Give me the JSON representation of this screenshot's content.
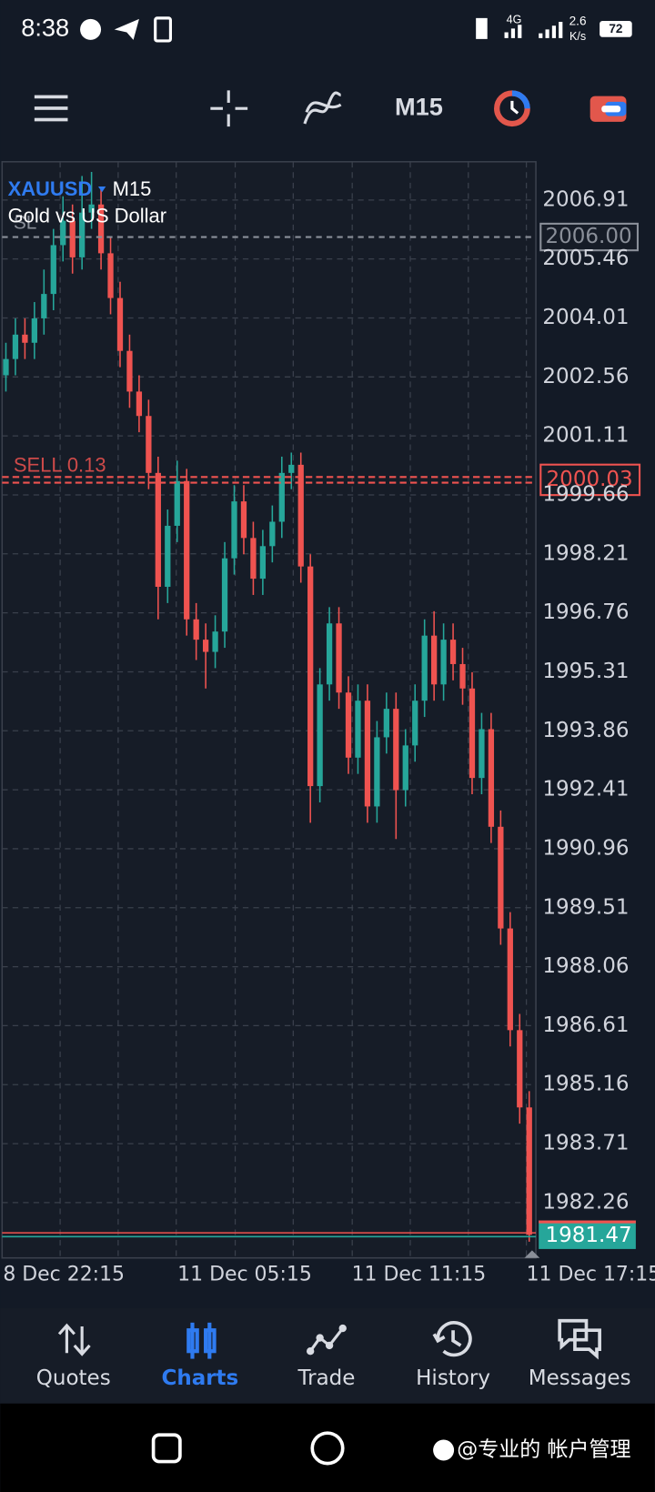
{
  "status_bar": {
    "time": "8:38",
    "network": "4G",
    "speed": "2.6",
    "speed_unit": "K/s",
    "battery": "72"
  },
  "toolbar": {
    "timeframe": "M15"
  },
  "chart_data": {
    "type": "candlestick",
    "symbol": "XAUUSD",
    "timeframe": "M15",
    "subtitle": "Gold vs US Dollar",
    "up_color": "#26a69a",
    "down_color": "#ef5350",
    "grid": true,
    "ylim": [
      1980.9,
      2007.85
    ],
    "yticks": [
      2006.91,
      2005.46,
      2004.01,
      2002.56,
      2001.11,
      1999.66,
      1998.21,
      1996.76,
      1995.31,
      1993.86,
      1992.41,
      1990.96,
      1989.51,
      1988.06,
      1986.61,
      1985.16,
      1983.71,
      1982.26
    ],
    "x_labels": [
      "8 Dec 22:15",
      "11 Dec 05:15",
      "11 Dec 11:15",
      "11 Dec 17:15"
    ],
    "candles": {
      "open": [
        2002.6,
        2003.0,
        2003.6,
        2003.4,
        2004.0,
        2004.6,
        2005.8,
        2006.4,
        2005.5,
        2006.6,
        2006.8,
        2005.6,
        2004.5,
        2003.2,
        2002.2,
        2001.6,
        2000.2,
        1997.4,
        1998.9,
        2000.0,
        1996.6,
        1996.1,
        1995.8,
        1996.3,
        1998.1,
        1999.5,
        1998.6,
        1997.6,
        1998.4,
        1999.0,
        2000.2,
        2000.4,
        1997.9,
        1992.5,
        1995.0,
        1996.5,
        1994.8,
        1993.2,
        1994.6,
        1992.0,
        1993.7,
        1994.4,
        1992.4,
        1993.5,
        1994.6,
        1996.2,
        1995.0,
        1996.1,
        1995.5,
        1994.9,
        1992.7,
        1993.9,
        1991.5,
        1989.0,
        1986.5,
        1984.6
      ],
      "high": [
        2003.4,
        2004.0,
        2004.0,
        2004.4,
        2005.2,
        2006.2,
        2007.0,
        2006.8,
        2007.5,
        2007.6,
        2007.2,
        2006.0,
        2004.9,
        2003.6,
        2002.6,
        2002.0,
        2000.6,
        1999.3,
        2000.5,
        2000.3,
        1997.0,
        1996.5,
        1996.7,
        1998.5,
        1999.9,
        1999.9,
        1999.0,
        1998.8,
        1999.4,
        2000.6,
        2000.7,
        2000.7,
        1998.2,
        1995.4,
        1996.9,
        1996.9,
        1995.2,
        1995.0,
        1995.0,
        1994.1,
        1994.8,
        1994.8,
        1993.9,
        1995.0,
        1996.6,
        1996.8,
        1996.5,
        1996.5,
        1995.9,
        1995.3,
        1994.3,
        1994.3,
        1991.9,
        1989.4,
        1986.9,
        1985.0
      ],
      "low": [
        2002.2,
        2002.6,
        2003.0,
        2003.0,
        2003.6,
        2004.2,
        2005.4,
        2005.1,
        2005.2,
        2006.2,
        2005.2,
        2004.1,
        2002.8,
        2001.8,
        2001.2,
        1999.8,
        1996.6,
        1997.0,
        1998.5,
        1996.2,
        1995.6,
        1994.9,
        1995.4,
        1995.9,
        1997.7,
        1998.2,
        1997.2,
        1997.2,
        1998.0,
        1998.6,
        1999.8,
        1997.5,
        1991.6,
        1992.1,
        1994.6,
        1994.4,
        1992.8,
        1992.8,
        1991.6,
        1991.6,
        1993.3,
        1991.2,
        1992.0,
        1993.1,
        1994.2,
        1994.6,
        1994.6,
        1995.1,
        1994.5,
        1992.3,
        1992.3,
        1991.1,
        1988.6,
        1986.1,
        1984.2,
        1981.3
      ],
      "close": [
        2003.0,
        2003.6,
        2003.4,
        2004.0,
        2004.6,
        2005.8,
        2006.4,
        2005.5,
        2006.6,
        2006.8,
        2005.6,
        2004.5,
        2003.2,
        2002.2,
        2001.6,
        2000.2,
        1997.4,
        1998.9,
        2000.0,
        1996.6,
        1996.1,
        1995.8,
        1996.3,
        1998.1,
        1999.5,
        1998.6,
        1997.6,
        1998.4,
        1999.0,
        2000.2,
        2000.4,
        1997.9,
        1992.5,
        1995.0,
        1996.5,
        1994.8,
        1993.2,
        1994.6,
        1992.0,
        1993.7,
        1994.4,
        1992.4,
        1993.5,
        1994.6,
        1996.2,
        1995.0,
        1996.1,
        1995.5,
        1994.9,
        1992.7,
        1993.9,
        1991.5,
        1989.0,
        1986.5,
        1984.6,
        1981.47
      ]
    },
    "price_lines": [
      {
        "name": "SL",
        "price": {
          "value": 2006,
          "label": "2006.00"
        },
        "color": "#8a8f99"
      },
      {
        "name": "SELL 0.13",
        "price": 2000.03,
        "color": "#ef5350"
      },
      {
        "price": 1981.47,
        "color": "#26a69a"
      }
    ]
  },
  "nav": [
    "Quotes",
    "Charts",
    "Trade",
    "History",
    "Messages"
  ],
  "watermark": "@专业的 帐户管理"
}
